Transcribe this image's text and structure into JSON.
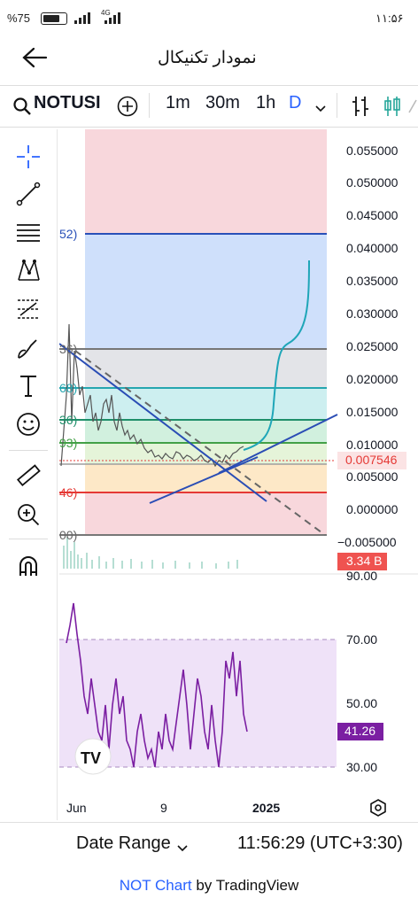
{
  "status": {
    "battery": "%75",
    "network": "4G",
    "time": "۱۱:۵۶"
  },
  "appbar": {
    "title": "نمودار تکنیکال"
  },
  "toolbar": {
    "symbol": "NOTUSI",
    "intervals": [
      "1m",
      "30m",
      "1h",
      "D"
    ]
  },
  "price_axis": {
    "labels": [
      "0.055000",
      "0.050000",
      "0.045000",
      "0.040000",
      "0.035000",
      "0.030000",
      "0.025000",
      "0.020000",
      "0.015000",
      "0.010000",
      "0.005000",
      "0.000000",
      "−0.005000"
    ],
    "last_price": "0.007546",
    "volume": "3.34 B"
  },
  "fib_labels": [
    "52)",
    "36)",
    "68)",
    "36)",
    "93)",
    "46)",
    "00)"
  ],
  "rsi": {
    "labels": [
      "90.00",
      "70.00",
      "50.00",
      "30.00"
    ],
    "current": "41.26"
  },
  "time_axis": {
    "labels": [
      "Jun",
      "9",
      "2025"
    ]
  },
  "bottom": {
    "date_range": "Date Range",
    "time": "11:56:29 (UTC+3:30)"
  },
  "footer": {
    "link": "NOT Chart",
    "text": " by TradingView"
  },
  "colors": {
    "accent": "#2962ff",
    "rsi_line": "#7b1fa2",
    "rsi_badge": "#7b1fa2",
    "last_price": "#e53935"
  }
}
